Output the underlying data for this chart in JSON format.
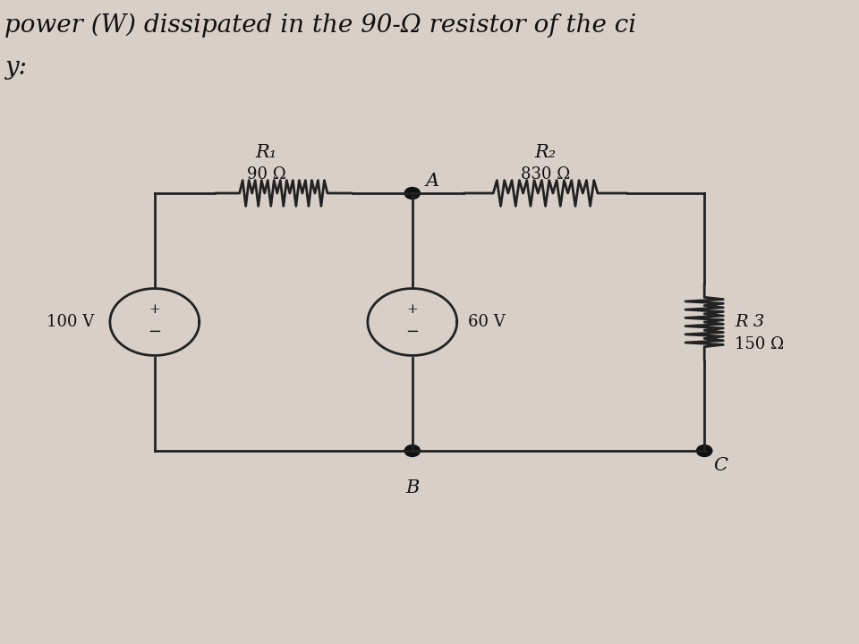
{
  "bg_color": "#d8d0c8",
  "title_text": "power (W) dissipated in the 90-Ω resistor of the ci",
  "subtitle_text": "y:",
  "title_fontsize": 20,
  "wire_color": "#222222",
  "wire_lw": 2.0,
  "resistor_color": "#222222",
  "source_color": "#222222",
  "label_color": "#111111",
  "node_color": "#111111",
  "r1_label": "R₁",
  "r1_value": "90 Ω",
  "r2_label": "R₂",
  "r2_value": "830 Ω",
  "r3_label": "R 3",
  "r3_value": "150 Ω",
  "v1_label": "100 V",
  "v2_label": "60 V",
  "node_a": "A",
  "node_b": "B",
  "node_c": "C"
}
